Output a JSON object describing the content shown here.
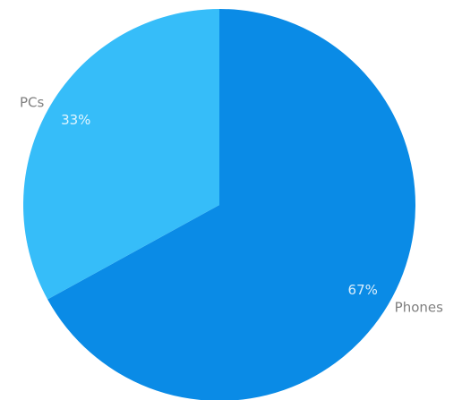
{
  "chart_data": {
    "type": "pie",
    "categories": [
      "Phones",
      "PCs"
    ],
    "values": [
      67,
      33
    ],
    "data_labels": [
      "67%",
      "33%"
    ],
    "colors": [
      "#0a8be6",
      "#36bdf9"
    ],
    "title": "",
    "legend": "none"
  }
}
